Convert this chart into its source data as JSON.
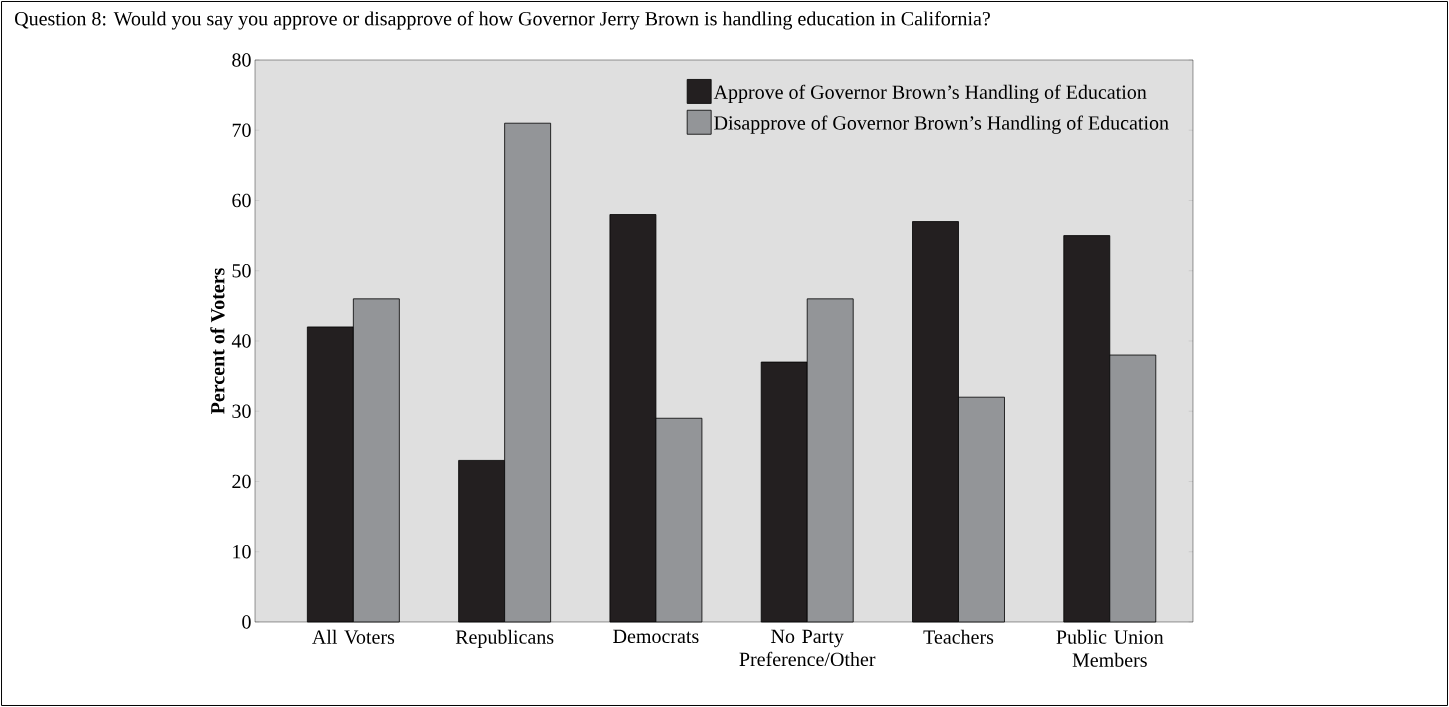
{
  "chart_data": {
    "type": "bar",
    "title": "Question 8: Would you say you approve or disapprove of how Governor Jerry Brown is handling education in California?",
    "ylabel": "Percent of Voters",
    "categories": [
      "All Voters",
      "Republicans",
      "Democrats",
      "No Party Preference/Other",
      "Teachers",
      "Public Union Members"
    ],
    "series": [
      {
        "name": "Approve of Governor Brown’s Handling of Education",
        "color": "#231f20",
        "values": [
          42,
          23,
          58,
          37,
          57,
          55
        ]
      },
      {
        "name": "Disapprove of Governor Brown’s Handling of Education",
        "color": "#939598",
        "values": [
          46,
          71,
          29,
          46,
          32,
          38
        ]
      }
    ],
    "ylim": [
      0,
      80
    ],
    "yticks": [
      0,
      10,
      20,
      30,
      40,
      50,
      60,
      70,
      80
    ],
    "grid": false,
    "legend": "top right"
  }
}
